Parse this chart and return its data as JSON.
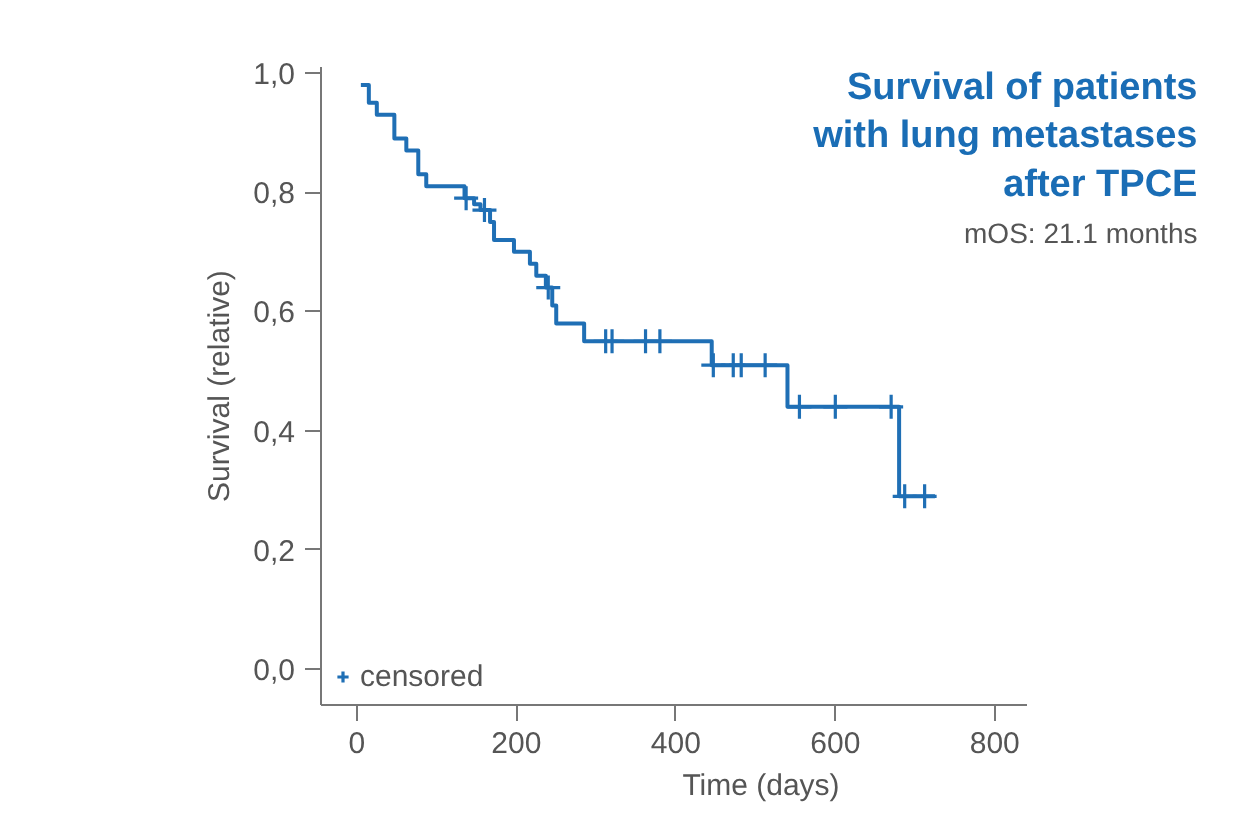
{
  "chart_data": {
    "type": "step",
    "title": "Survival of patients\nwith lung metastases\nafter TPCE",
    "annotations": [
      "mOS: 21.1 months"
    ],
    "xlabel": "Time (days)",
    "ylabel": "Survival (relative)",
    "xlim": [
      -45,
      840
    ],
    "ylim": [
      -0.06,
      1.01
    ],
    "xticks": [
      0,
      200,
      400,
      600,
      800
    ],
    "yticks": [
      {
        "value": 0,
        "label": "0,0"
      },
      {
        "value": 0.2,
        "label": "0,2"
      },
      {
        "value": 0.4,
        "label": "0,4"
      },
      {
        "value": 0.6,
        "label": "0,6"
      },
      {
        "value": 0.8,
        "label": "0,8"
      },
      {
        "value": 1.0,
        "label": "1,0"
      }
    ],
    "grid": false,
    "legend": "bottom left",
    "series": [
      {
        "color": "#1f6fb5",
        "x": [
          5,
          15,
          25,
          47,
          62,
          77,
          87,
          135,
          147,
          155,
          167,
          172,
          197,
          217,
          225,
          237,
          245,
          250,
          285,
          445,
          540,
          680,
          725
        ],
        "values": [
          0.98,
          0.95,
          0.93,
          0.89,
          0.87,
          0.83,
          0.81,
          0.79,
          0.78,
          0.77,
          0.75,
          0.72,
          0.7,
          0.68,
          0.66,
          0.64,
          0.61,
          0.58,
          0.55,
          0.51,
          0.44,
          0.29,
          0.29
        ]
      },
      {
        "type": "scatter",
        "name": "censored",
        "marker": "cross",
        "color": "#1f6fb5",
        "x": [
          137,
          160,
          240,
          312,
          320,
          362,
          380,
          447,
          472,
          482,
          512,
          555,
          600,
          670,
          687,
          712
        ],
        "values": [
          0.79,
          0.77,
          0.64,
          0.55,
          0.55,
          0.55,
          0.55,
          0.51,
          0.51,
          0.51,
          0.51,
          0.44,
          0.44,
          0.44,
          0.29,
          0.29
        ]
      }
    ]
  }
}
